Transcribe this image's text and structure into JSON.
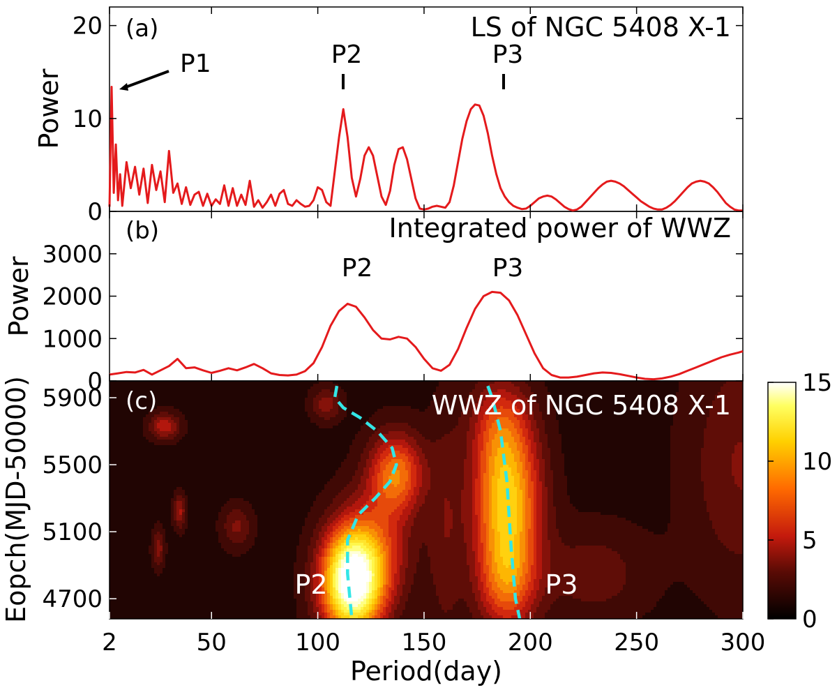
{
  "figure": {
    "xlabel": "Period(day)",
    "x_ticks": [
      2,
      50,
      100,
      150,
      200,
      250,
      300
    ],
    "xlim": [
      2,
      300
    ]
  },
  "panel_a": {
    "tag": "(a)",
    "title": "LS of NGC 5408 X-1",
    "ylabel": "Power",
    "y_ticks": [
      0,
      10,
      20
    ],
    "annotations": [
      "P1",
      "P2",
      "P3"
    ]
  },
  "panel_b": {
    "tag": "(b)",
    "title": "Integrated power of WWZ",
    "ylabel": "Power",
    "y_ticks": [
      0,
      1000,
      2000,
      3000
    ],
    "annotations": [
      "P2",
      "P3"
    ]
  },
  "panel_c": {
    "tag": "(c)",
    "title": "WWZ of NGC 5408 X-1",
    "ylabel": "Eopch(MJD-50000)",
    "y_ticks": [
      4700,
      5100,
      5500,
      5900
    ],
    "annotations": [
      "P2",
      "P3"
    ],
    "colorbar_ticks": [
      0,
      5,
      10,
      15
    ]
  },
  "colors": {
    "line": "#e41a1c",
    "track": "#33e6e6",
    "background": "#120302"
  },
  "chart_data": [
    {
      "type": "line",
      "title": "LS of NGC 5408 X-1",
      "xlabel": "Period(day)",
      "ylabel": "Power",
      "xlim": [
        2,
        300
      ],
      "ylim": [
        0,
        22
      ],
      "x": [
        2,
        3,
        4,
        5,
        6,
        7,
        8,
        10,
        12,
        14,
        16,
        18,
        20,
        22,
        24,
        26,
        28,
        30,
        32,
        34,
        36,
        38,
        40,
        42,
        44,
        46,
        48,
        50,
        52,
        54,
        56,
        58,
        60,
        62,
        64,
        66,
        68,
        70,
        72,
        74,
        76,
        78,
        80,
        82,
        84,
        86,
        88,
        90,
        92,
        94,
        96,
        98,
        100,
        102,
        104,
        106,
        108,
        110,
        112,
        114,
        116,
        118,
        120,
        122,
        124,
        126,
        128,
        130,
        132,
        134,
        136,
        138,
        140,
        142,
        144,
        146,
        148,
        150,
        152,
        154,
        156,
        158,
        160,
        162,
        164,
        166,
        168,
        170,
        172,
        174,
        176,
        178,
        180,
        182,
        184,
        186,
        188,
        190,
        192,
        194,
        196,
        198,
        200,
        202,
        204,
        206,
        208,
        210,
        212,
        214,
        216,
        218,
        220,
        222,
        224,
        226,
        228,
        230,
        232,
        234,
        236,
        238,
        240,
        242,
        244,
        246,
        248,
        250,
        252,
        254,
        256,
        258,
        260,
        262,
        264,
        266,
        268,
        270,
        272,
        274,
        276,
        278,
        280,
        282,
        284,
        286,
        288,
        290,
        292,
        294,
        296,
        298,
        300
      ],
      "y": [
        0.5,
        13.4,
        2.0,
        7.2,
        1.2,
        4.0,
        0.6,
        5.3,
        2.5,
        4.8,
        1.8,
        4.6,
        0.9,
        5.0,
        2.3,
        4.3,
        1.0,
        6.5,
        2.0,
        3.0,
        0.8,
        2.6,
        0.7,
        1.8,
        2.1,
        0.6,
        1.9,
        0.6,
        1.3,
        0.8,
        2.8,
        0.6,
        2.5,
        0.6,
        1.8,
        0.7,
        3.3,
        0.5,
        1.2,
        0.4,
        1.0,
        1.8,
        0.6,
        1.9,
        2.3,
        0.8,
        0.6,
        1.2,
        0.8,
        0.5,
        0.6,
        1.2,
        2.6,
        2.3,
        1.0,
        0.6,
        4.3,
        8.0,
        11.0,
        8.0,
        3.6,
        1.6,
        3.5,
        6.0,
        6.9,
        6.0,
        3.8,
        1.6,
        0.7,
        2.2,
        5.0,
        6.7,
        6.9,
        5.6,
        3.5,
        1.4,
        0.3,
        0.2,
        0.3,
        0.5,
        0.6,
        0.5,
        0.4,
        1.0,
        2.8,
        5.3,
        7.8,
        9.7,
        11.0,
        11.5,
        11.4,
        10.3,
        8.4,
        6.0,
        4.0,
        2.5,
        1.6,
        1.0,
        0.6,
        0.4,
        0.25,
        0.3,
        0.6,
        1.0,
        1.4,
        1.6,
        1.7,
        1.6,
        1.3,
        0.9,
        0.5,
        0.25,
        0.1,
        0.2,
        0.5,
        1.0,
        1.5,
        2.0,
        2.5,
        2.9,
        3.2,
        3.3,
        3.2,
        3.0,
        2.7,
        2.3,
        1.9,
        1.5,
        1.1,
        0.8,
        0.5,
        0.3,
        0.2,
        0.2,
        0.4,
        0.7,
        1.1,
        1.6,
        2.1,
        2.6,
        3.0,
        3.2,
        3.3,
        3.2,
        3.0,
        2.6,
        2.1,
        1.5,
        0.9,
        0.5,
        0.2,
        0.1,
        0.1
      ]
    },
    {
      "type": "line",
      "title": "Integrated power of WWZ",
      "xlabel": "Period(day)",
      "ylabel": "Power",
      "xlim": [
        2,
        300
      ],
      "ylim": [
        0,
        4000
      ],
      "x": [
        2,
        6,
        10,
        14,
        18,
        22,
        26,
        30,
        34,
        38,
        42,
        46,
        50,
        54,
        58,
        62,
        66,
        70,
        74,
        78,
        82,
        86,
        90,
        94,
        98,
        102,
        106,
        110,
        114,
        118,
        122,
        126,
        130,
        134,
        138,
        142,
        146,
        150,
        154,
        158,
        162,
        166,
        170,
        174,
        178,
        182,
        186,
        190,
        194,
        198,
        202,
        206,
        210,
        214,
        218,
        222,
        226,
        230,
        234,
        238,
        242,
        246,
        250,
        254,
        258,
        262,
        266,
        270,
        274,
        278,
        282,
        286,
        290,
        294,
        298,
        300
      ],
      "y": [
        150,
        180,
        210,
        200,
        260,
        150,
        250,
        350,
        520,
        300,
        320,
        250,
        190,
        240,
        300,
        250,
        320,
        400,
        300,
        180,
        140,
        130,
        150,
        230,
        420,
        800,
        1300,
        1650,
        1820,
        1750,
        1500,
        1200,
        1000,
        980,
        1040,
        1000,
        800,
        520,
        300,
        240,
        380,
        750,
        1250,
        1700,
        2000,
        2100,
        2080,
        1900,
        1550,
        1100,
        650,
        300,
        140,
        80,
        80,
        100,
        140,
        180,
        200,
        190,
        160,
        120,
        80,
        50,
        40,
        60,
        100,
        160,
        240,
        320,
        400,
        480,
        560,
        620,
        670,
        700
      ]
    },
    {
      "type": "heatmap",
      "title": "WWZ of NGC 5408 X-1",
      "xlabel": "Period(day)",
      "ylabel": "Eopch(MJD-50000)",
      "xlim": [
        2,
        300
      ],
      "ylim": [
        4580,
        6000
      ],
      "zlim": [
        0,
        15
      ],
      "peaks": [
        {
          "period": 116,
          "epoch": 4800,
          "period_width": 10,
          "epoch_width": 220,
          "amp": 15.5
        },
        {
          "period": 137,
          "epoch": 5450,
          "period_width": 9,
          "epoch_width": 170,
          "amp": 7.0
        },
        {
          "period": 189,
          "epoch": 5300,
          "period_width": 11,
          "epoch_width": 300,
          "amp": 9.5
        },
        {
          "period": 189,
          "epoch": 4800,
          "period_width": 10,
          "epoch_width": 220,
          "amp": 6.0
        },
        {
          "period": 186,
          "epoch": 5750,
          "period_width": 10,
          "epoch_width": 200,
          "amp": 4.0
        },
        {
          "period": 128,
          "epoch": 5000,
          "period_width": 12,
          "epoch_width": 250,
          "amp": 4.0
        },
        {
          "period": 28,
          "epoch": 5730,
          "period_width": 5,
          "epoch_width": 55,
          "amp": 4.2
        },
        {
          "period": 35,
          "epoch": 5220,
          "period_width": 2,
          "epoch_width": 70,
          "amp": 3.6
        },
        {
          "period": 25,
          "epoch": 5000,
          "period_width": 2,
          "epoch_width": 80,
          "amp": 3.0
        },
        {
          "period": 62,
          "epoch": 5130,
          "period_width": 5,
          "epoch_width": 90,
          "amp": 2.6
        },
        {
          "period": 104,
          "epoch": 5860,
          "period_width": 5,
          "epoch_width": 70,
          "amp": 3.0
        },
        {
          "period": 300,
          "epoch": 5500,
          "period_width": 18,
          "epoch_width": 500,
          "amp": 2.5
        },
        {
          "period": 230,
          "epoch": 4850,
          "period_width": 18,
          "epoch_width": 200,
          "amp": 2.0
        },
        {
          "period": 160,
          "epoch": 5100,
          "period_width": 6,
          "epoch_width": 500,
          "amp": 2.0
        }
      ],
      "ridges": [
        {
          "name": "P2",
          "period": [
            109,
            108,
            112,
            120,
            128,
            135,
            137,
            134,
            127,
            119,
            114,
            114,
            116
          ],
          "epoch": [
            5970,
            5900,
            5840,
            5780,
            5700,
            5600,
            5500,
            5400,
            5300,
            5200,
            5050,
            4850,
            4580
          ]
        },
        {
          "name": "P3",
          "period": [
            180,
            182,
            184,
            186,
            187,
            188,
            189,
            190,
            191,
            192,
            193,
            195
          ],
          "epoch": [
            5970,
            5900,
            5800,
            5700,
            5600,
            5500,
            5400,
            5200,
            5000,
            4850,
            4700,
            4580
          ]
        }
      ]
    }
  ]
}
